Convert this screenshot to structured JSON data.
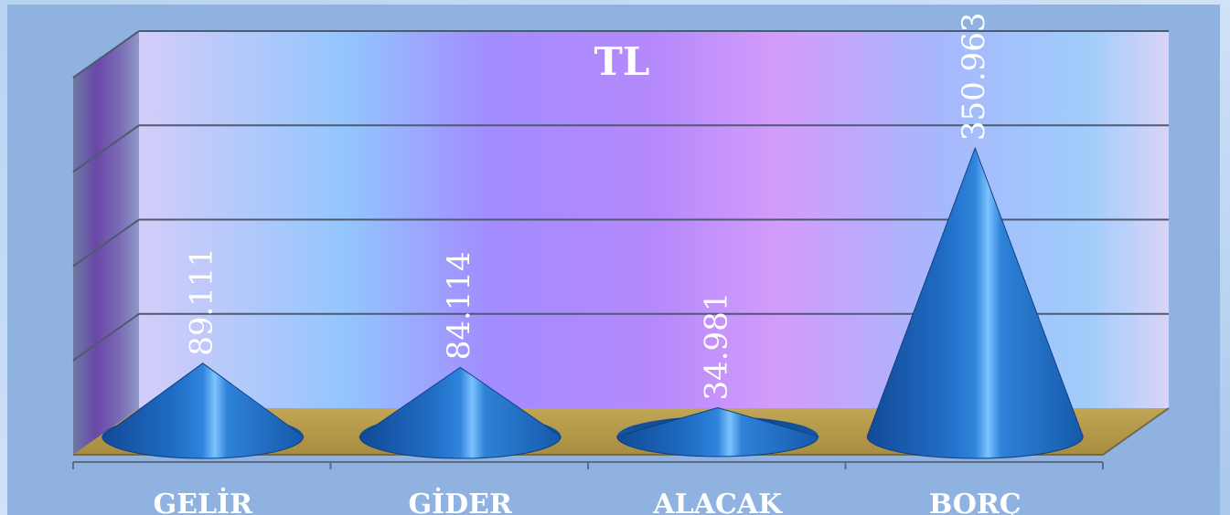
{
  "colors": {
    "page_background": "#b9d4f0",
    "frame": "#8fb2e0",
    "floor": "#b59a4d",
    "cone": "#1f6cc4",
    "cone_highlight": "#7cc3ff",
    "gridline": "#4e5a72",
    "label_text": "#ffffff"
  },
  "chart_data": {
    "type": "bar",
    "bar_shape": "cone",
    "three_d": true,
    "title": "TL",
    "categories": [
      "GELİR",
      "GİDER",
      "ALACAK",
      "BORÇ"
    ],
    "values": [
      89.111,
      84.114,
      34.981,
      350.963
    ],
    "value_labels": [
      "89.111",
      "84.114",
      "34.981",
      "350.963"
    ],
    "value_label_rotation": "vertical",
    "ylim": [
      0,
      400
    ],
    "yticks": [
      0,
      100,
      200,
      300,
      400
    ],
    "ytick_labels_visible": false,
    "grid": true,
    "legend": "none"
  }
}
